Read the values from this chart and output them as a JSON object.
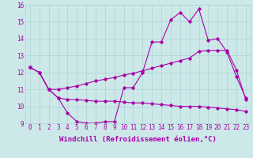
{
  "title": "",
  "xlabel": "Windchill (Refroidissement éolien,°C)",
  "ylabel": "",
  "background_color": "#cce8e8",
  "line_color": "#aa00aa",
  "xlim": [
    -0.5,
    23.5
  ],
  "ylim": [
    9,
    16
  ],
  "yticks": [
    9,
    10,
    11,
    12,
    13,
    14,
    15,
    16
  ],
  "xticks": [
    0,
    1,
    2,
    3,
    4,
    5,
    6,
    7,
    8,
    9,
    10,
    11,
    12,
    13,
    14,
    15,
    16,
    17,
    18,
    19,
    20,
    21,
    22,
    23
  ],
  "series1_x": [
    0,
    1,
    2,
    3,
    4,
    5,
    6,
    7,
    8,
    9,
    10,
    11,
    12,
    13,
    14,
    15,
    16,
    17,
    18,
    19,
    20,
    21,
    22,
    23
  ],
  "series1_y": [
    12.3,
    12.0,
    11.0,
    10.5,
    9.6,
    9.1,
    9.0,
    9.0,
    9.1,
    9.1,
    11.1,
    11.1,
    12.0,
    13.8,
    13.8,
    15.1,
    15.55,
    15.0,
    15.75,
    13.9,
    14.0,
    13.2,
    11.75,
    10.5
  ],
  "series2_x": [
    0,
    1,
    2,
    3,
    4,
    5,
    6,
    7,
    8,
    9,
    10,
    11,
    12,
    13,
    14,
    15,
    16,
    17,
    18,
    19,
    20,
    21,
    22,
    23
  ],
  "series2_y": [
    12.3,
    12.0,
    11.0,
    10.5,
    10.4,
    10.4,
    10.35,
    10.3,
    10.3,
    10.3,
    10.25,
    10.2,
    10.2,
    10.15,
    10.1,
    10.05,
    10.0,
    10.0,
    10.0,
    9.95,
    9.9,
    9.85,
    9.8,
    9.7
  ],
  "series3_x": [
    0,
    1,
    2,
    3,
    4,
    5,
    6,
    7,
    8,
    9,
    10,
    11,
    12,
    13,
    14,
    15,
    16,
    17,
    18,
    19,
    20,
    21,
    22,
    23
  ],
  "series3_y": [
    12.3,
    12.0,
    11.0,
    11.0,
    11.1,
    11.2,
    11.35,
    11.5,
    11.6,
    11.7,
    11.85,
    11.95,
    12.1,
    12.25,
    12.4,
    12.55,
    12.7,
    12.85,
    13.25,
    13.3,
    13.3,
    13.3,
    12.15,
    10.4
  ],
  "grid_color": "#aad4d4",
  "tick_label_fontsize": 5.5,
  "xlabel_fontsize": 6.5
}
